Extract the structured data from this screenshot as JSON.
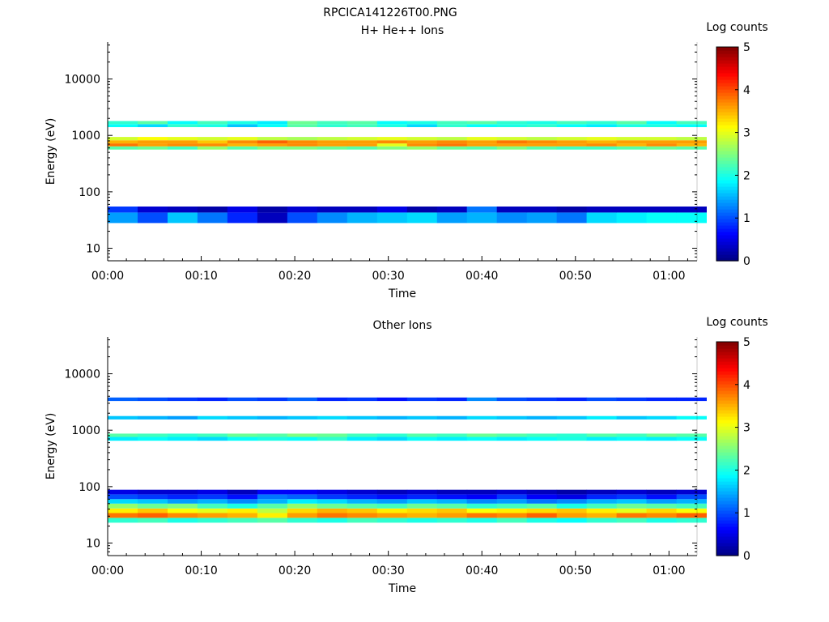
{
  "figure_title": "RPCICA141226T00.PNG",
  "chart_data": [
    {
      "type": "heatmap",
      "title": "H+ He++ Ions",
      "xlabel": "Time",
      "ylabel": "Energy (eV)",
      "x_ticks": [
        "00:00",
        "00:10",
        "00:20",
        "00:30",
        "00:40",
        "00:50",
        "01:00"
      ],
      "x_range_minutes": [
        0,
        63
      ],
      "time_bins_minutes": [
        0,
        3.2,
        6.4,
        9.6,
        12.8,
        16.0,
        19.2,
        22.4,
        25.6,
        28.8,
        32.0,
        35.2,
        38.4,
        41.6,
        44.8,
        48.0,
        51.2,
        54.4,
        57.6,
        60.8
      ],
      "y_scale": "log",
      "y_range_eV": [
        6,
        45000
      ],
      "y_ticks": [
        10,
        100,
        1000,
        10000
      ],
      "y_tick_labels": [
        "10",
        "100",
        "1000",
        "10000"
      ],
      "colorbar": {
        "label": "Log counts",
        "ticks": [
          "0",
          "1",
          "2",
          "3",
          "4",
          "5"
        ],
        "range": [
          0,
          5
        ]
      },
      "bands": [
        {
          "e_lo": 28,
          "e_hi": 43,
          "values": [
            1.4,
            1.0,
            1.6,
            1.2,
            0.8,
            0.3,
            1.0,
            1.3,
            1.5,
            1.6,
            1.7,
            1.4,
            1.5,
            1.3,
            1.4,
            1.2,
            1.7,
            1.8,
            1.9,
            1.9
          ]
        },
        {
          "e_lo": 43,
          "e_hi": 55,
          "values": [
            0.9,
            0.4,
            0.3,
            0.2,
            0.5,
            0.2,
            0.4,
            0.3,
            0.3,
            0.5,
            0.2,
            0.3,
            1.2,
            0.3,
            0.3,
            0.2,
            0.3,
            0.3,
            0.3,
            0.3
          ]
        },
        {
          "e_lo": 560,
          "e_hi": 640,
          "values": [
            2.3,
            2.4,
            2.2,
            2.6,
            2.3,
            2.5,
            2.5,
            2.4,
            2.3,
            2.5,
            2.6,
            2.4,
            2.3,
            2.5,
            2.3,
            2.2,
            2.2,
            2.3,
            2.4,
            2.3
          ]
        },
        {
          "e_lo": 640,
          "e_hi": 720,
          "values": [
            3.8,
            3.6,
            3.7,
            3.7,
            3.5,
            3.6,
            3.7,
            3.6,
            3.6,
            3.0,
            3.7,
            3.8,
            3.6,
            3.6,
            3.6,
            3.6,
            3.7,
            3.5,
            3.7,
            3.5
          ]
        },
        {
          "e_lo": 720,
          "e_hi": 820,
          "values": [
            3.5,
            3.6,
            3.6,
            3.4,
            3.7,
            3.9,
            3.7,
            3.6,
            3.6,
            3.7,
            3.6,
            3.7,
            3.6,
            3.8,
            3.7,
            3.6,
            3.5,
            3.6,
            3.6,
            3.6
          ]
        },
        {
          "e_lo": 820,
          "e_hi": 940,
          "values": [
            2.9,
            3.1,
            3.0,
            2.9,
            3.0,
            2.8,
            2.7,
            2.8,
            2.9,
            3.0,
            2.9,
            2.8,
            3.0,
            2.9,
            2.8,
            2.9,
            3.0,
            2.9,
            2.9,
            2.8
          ]
        },
        {
          "e_lo": 1400,
          "e_hi": 1580,
          "values": [
            1.9,
            1.7,
            2.1,
            2.0,
            1.6,
            1.9,
            2.3,
            2.1,
            2.2,
            2.0,
            1.7,
            2.1,
            1.9,
            2.0,
            2.1,
            1.9,
            1.8,
            2.0,
            2.0,
            1.9
          ]
        },
        {
          "e_lo": 1580,
          "e_hi": 1800,
          "values": [
            2.1,
            2.3,
            1.9,
            2.2,
            2.0,
            1.8,
            2.4,
            2.2,
            2.3,
            1.9,
            2.0,
            2.2,
            2.3,
            2.1,
            2.0,
            2.2,
            2.1,
            2.3,
            1.9,
            2.2
          ]
        }
      ]
    },
    {
      "type": "heatmap",
      "title": "Other Ions",
      "xlabel": "Time",
      "ylabel": "Energy (eV)",
      "x_ticks": [
        "00:00",
        "00:10",
        "00:20",
        "00:30",
        "00:40",
        "00:50",
        "01:00"
      ],
      "x_range_minutes": [
        0,
        63
      ],
      "time_bins_minutes": [
        0,
        3.2,
        6.4,
        9.6,
        12.8,
        16.0,
        19.2,
        22.4,
        25.6,
        28.8,
        32.0,
        35.2,
        38.4,
        41.6,
        44.8,
        48.0,
        51.2,
        54.4,
        57.6,
        60.8
      ],
      "y_scale": "log",
      "y_range_eV": [
        6,
        45000
      ],
      "y_ticks": [
        10,
        100,
        1000,
        10000
      ],
      "y_tick_labels": [
        "10",
        "100",
        "1000",
        "10000"
      ],
      "colorbar": {
        "label": "Log counts",
        "ticks": [
          "0",
          "1",
          "2",
          "3",
          "4",
          "5"
        ],
        "range": [
          0,
          5
        ]
      },
      "bands": [
        {
          "e_lo": 23,
          "e_hi": 28,
          "values": [
            2.1,
            2.2,
            2.0,
            2.1,
            2.2,
            2.3,
            2.1,
            2.0,
            2.2,
            2.1,
            2.0,
            2.1,
            2.0,
            2.2,
            2.0,
            1.9,
            2.1,
            2.2,
            2.0,
            2.1
          ]
        },
        {
          "e_lo": 28,
          "e_hi": 34,
          "values": [
            3.8,
            3.9,
            3.7,
            3.6,
            3.5,
            3.2,
            3.6,
            3.8,
            3.7,
            3.6,
            3.5,
            3.6,
            3.8,
            3.7,
            3.9,
            3.6,
            3.5,
            3.8,
            3.7,
            3.9
          ]
        },
        {
          "e_lo": 34,
          "e_hi": 41,
          "values": [
            3.2,
            3.4,
            3.1,
            3.0,
            3.2,
            2.8,
            3.3,
            3.5,
            3.4,
            3.2,
            3.3,
            3.4,
            3.1,
            3.2,
            3.3,
            3.4,
            3.2,
            3.0,
            3.3,
            3.1
          ]
        },
        {
          "e_lo": 41,
          "e_hi": 50,
          "values": [
            2.6,
            2.4,
            2.5,
            2.2,
            2.0,
            2.3,
            2.6,
            2.4,
            2.3,
            2.2,
            2.4,
            2.3,
            2.1,
            2.2,
            2.3,
            2.0,
            2.2,
            2.4,
            2.3,
            2.2
          ]
        },
        {
          "e_lo": 50,
          "e_hi": 60,
          "values": [
            1.7,
            1.6,
            1.4,
            1.5,
            1.3,
            1.5,
            1.8,
            1.7,
            1.5,
            1.4,
            1.6,
            1.5,
            1.3,
            1.4,
            1.2,
            1.3,
            1.5,
            1.6,
            1.4,
            1.5
          ]
        },
        {
          "e_lo": 60,
          "e_hi": 73,
          "values": [
            1.0,
            0.9,
            0.8,
            0.9,
            0.7,
            1.2,
            1.1,
            0.9,
            0.8,
            0.7,
            0.8,
            0.7,
            0.6,
            0.9,
            0.6,
            0.5,
            0.8,
            0.9,
            0.7,
            1.0
          ]
        },
        {
          "e_lo": 73,
          "e_hi": 88,
          "values": [
            0.5,
            0.4,
            0.4,
            0.5,
            0.3,
            0.6,
            0.6,
            0.5,
            0.4,
            0.3,
            0.4,
            0.3,
            0.3,
            0.4,
            0.3,
            0.2,
            0.3,
            0.4,
            0.3,
            0.4
          ]
        },
        {
          "e_lo": 650,
          "e_hi": 760,
          "values": [
            1.8,
            1.9,
            1.8,
            1.7,
            1.9,
            2.0,
            1.9,
            2.1,
            1.8,
            1.7,
            1.9,
            1.8,
            1.9,
            1.8,
            1.9,
            2.0,
            1.8,
            1.9,
            1.8,
            1.9
          ]
        },
        {
          "e_lo": 760,
          "e_hi": 870,
          "values": [
            2.3,
            2.2,
            2.1,
            2.2,
            2.4,
            2.3,
            2.5,
            2.4,
            2.2,
            2.1,
            2.3,
            2.2,
            2.4,
            2.3,
            2.2,
            2.1,
            2.3,
            2.2,
            2.4,
            2.3
          ]
        },
        {
          "e_lo": 1550,
          "e_hi": 1780,
          "values": [
            1.6,
            1.5,
            1.4,
            1.7,
            1.6,
            1.5,
            1.6,
            1.7,
            1.6,
            1.5,
            1.6,
            1.5,
            1.7,
            1.6,
            1.5,
            1.6,
            1.8,
            1.6,
            1.7,
            1.9
          ]
        },
        {
          "e_lo": 3300,
          "e_hi": 3800,
          "values": [
            1.1,
            1.0,
            0.9,
            0.8,
            1.0,
            0.9,
            1.1,
            0.8,
            0.9,
            0.7,
            0.9,
            0.8,
            1.3,
            1.0,
            0.9,
            0.8,
            1.0,
            0.9,
            0.8,
            0.8
          ]
        }
      ]
    }
  ]
}
